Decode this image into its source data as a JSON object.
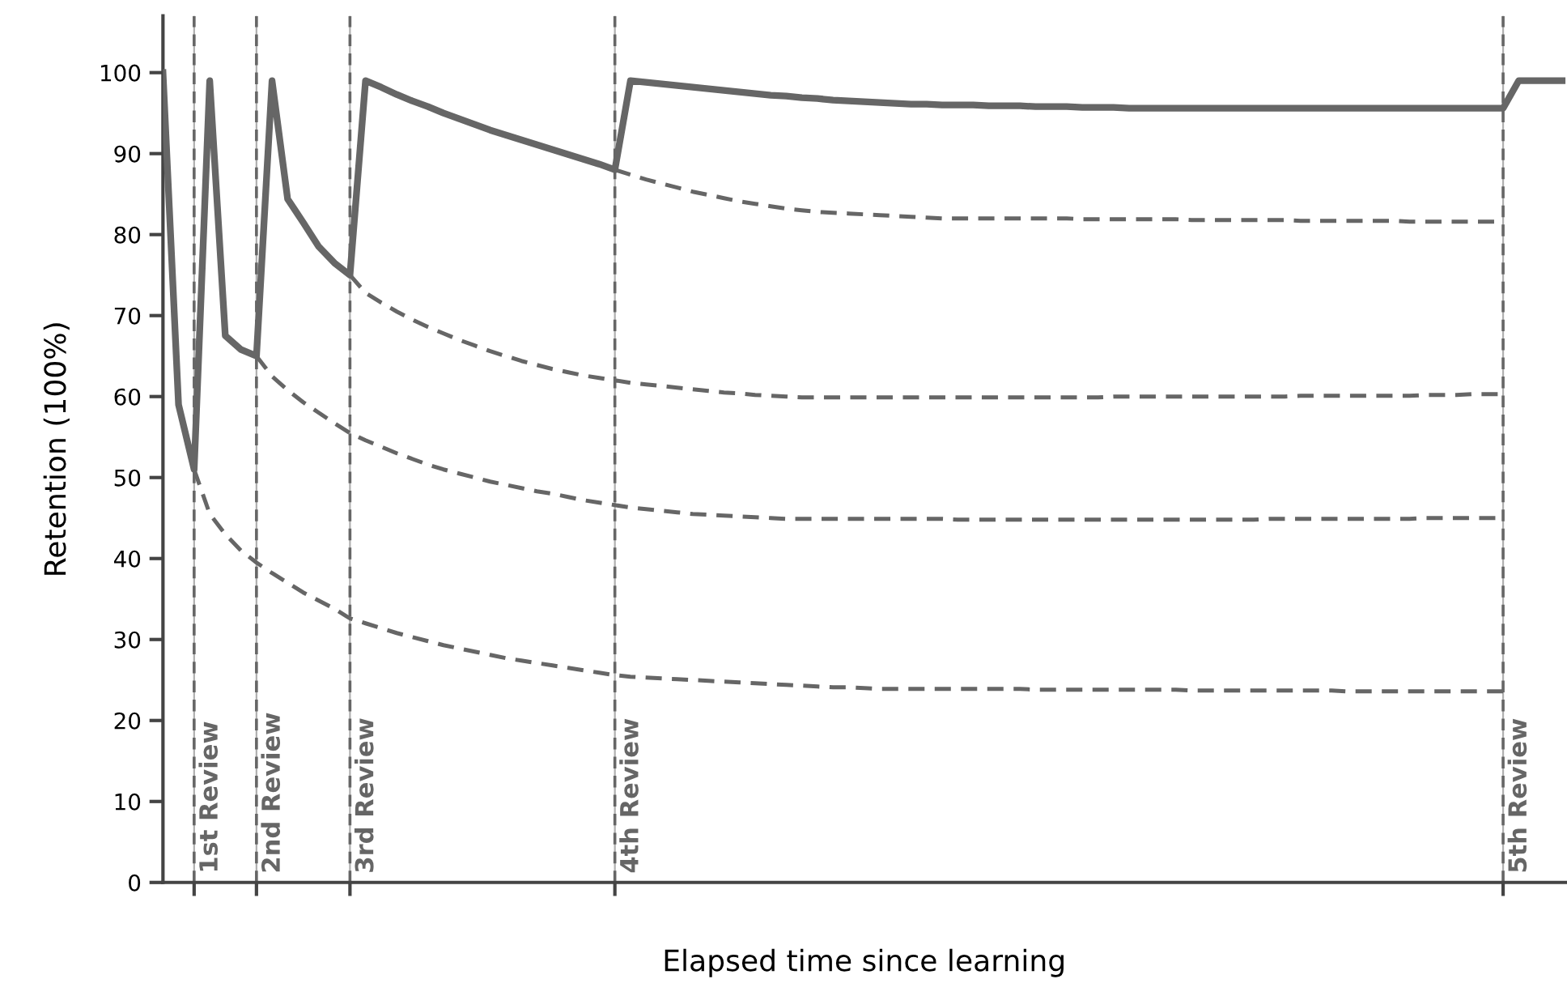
{
  "chart_data": {
    "type": "line",
    "xlabel": "Elapsed time since learning",
    "ylabel": "Retention (100%)",
    "categories": [
      null,
      null,
      null,
      null,
      null,
      null,
      null,
      null,
      null,
      null,
      null,
      null,
      null,
      null,
      null,
      null,
      null,
      null,
      null,
      null,
      null,
      null,
      null,
      null,
      null,
      null,
      null,
      null,
      null,
      null,
      null,
      null,
      null,
      null,
      null,
      null,
      null,
      null,
      null,
      null,
      null,
      null,
      null,
      null,
      null,
      null,
      null,
      null,
      null,
      null,
      null,
      null,
      null,
      null,
      null,
      null,
      null,
      null,
      null,
      null,
      null,
      null,
      null,
      null,
      null,
      null,
      null,
      null,
      null,
      null,
      null,
      null,
      null,
      null,
      null,
      null,
      null,
      null,
      null,
      null,
      null,
      null,
      null,
      null,
      null,
      null,
      null,
      null,
      null,
      null,
      null
    ],
    "ylim": [
      0,
      107
    ],
    "yticks": [
      0,
      10,
      20,
      30,
      40,
      50,
      60,
      70,
      80,
      90,
      100
    ],
    "tick_labels": "y",
    "marker": "none",
    "series": [
      {
        "color": "#666666",
        "line_style": "solid",
        "values": [
          100,
          59,
          51,
          99,
          67.5,
          65.8,
          65,
          99,
          84.4,
          81.5,
          78.5,
          76.5,
          75,
          99,
          98.2,
          97.3,
          96.5,
          95.8,
          95,
          94.3,
          93.6,
          92.9,
          92.3,
          91.7,
          91.1,
          90.5,
          89.9,
          89.3,
          88.7,
          88,
          99,
          98.8,
          98.6,
          98.4,
          98.2,
          98,
          97.8,
          97.6,
          97.4,
          97.2,
          97.1,
          96.9,
          96.8,
          96.6,
          96.5,
          96.4,
          96.3,
          96.2,
          96.1,
          96.1,
          96,
          96,
          96,
          95.9,
          95.9,
          95.9,
          95.8,
          95.8,
          95.8,
          95.7,
          95.7,
          95.7,
          95.6,
          95.6,
          95.6,
          95.6,
          95.6,
          95.6,
          95.6,
          95.6,
          95.6,
          95.6,
          95.6,
          95.6,
          95.6,
          95.6,
          95.6,
          95.6,
          95.6,
          95.6,
          95.6,
          95.6,
          95.6,
          95.6,
          95.6,
          95.6,
          95.6,
          99,
          99,
          99,
          99
        ]
      },
      {
        "color": "#666666",
        "line_style": "dashed",
        "values": [
          null,
          null,
          51,
          45.5,
          43,
          41,
          39.5,
          38.2,
          37,
          35.8,
          34.8,
          33.8,
          32.6,
          32,
          31.4,
          30.8,
          30.3,
          29.8,
          29.3,
          28.9,
          28.5,
          28.1,
          27.7,
          27.4,
          27.1,
          26.8,
          26.5,
          26.2,
          25.9,
          25.6,
          25.4,
          25.3,
          25.2,
          25.1,
          25,
          24.9,
          24.8,
          24.7,
          24.6,
          24.5,
          24.4,
          24.3,
          24.2,
          24.1,
          24.1,
          24,
          23.9,
          23.9,
          23.9,
          23.9,
          23.9,
          23.9,
          23.9,
          23.9,
          23.9,
          23.9,
          23.8,
          23.8,
          23.8,
          23.8,
          23.8,
          23.8,
          23.8,
          23.8,
          23.8,
          23.8,
          23.7,
          23.7,
          23.7,
          23.7,
          23.7,
          23.7,
          23.7,
          23.7,
          23.7,
          23.7,
          23.6,
          23.6,
          23.6,
          23.6,
          23.6,
          23.6,
          23.6,
          23.6,
          23.6,
          23.6,
          23.6,
          null,
          null,
          null,
          null
        ]
      },
      {
        "color": "#666666",
        "line_style": "dashed",
        "values": [
          null,
          null,
          null,
          null,
          null,
          null,
          65,
          62.5,
          60.8,
          59.3,
          58,
          56.7,
          55.5,
          54.6,
          53.8,
          53,
          52.3,
          51.6,
          51,
          50.5,
          50,
          49.5,
          49.1,
          48.7,
          48.3,
          48,
          47.6,
          47.2,
          46.9,
          46.6,
          46.3,
          46.1,
          45.9,
          45.7,
          45.5,
          45.4,
          45.3,
          45.2,
          45.1,
          45,
          44.9,
          44.9,
          44.9,
          44.9,
          44.9,
          44.9,
          44.9,
          44.9,
          44.9,
          44.9,
          44.9,
          44.8,
          44.8,
          44.8,
          44.8,
          44.8,
          44.8,
          44.8,
          44.8,
          44.8,
          44.8,
          44.8,
          44.8,
          44.8,
          44.8,
          44.8,
          44.8,
          44.8,
          44.8,
          44.8,
          44.8,
          44.9,
          44.9,
          44.9,
          44.9,
          44.9,
          44.9,
          44.9,
          44.9,
          44.9,
          44.9,
          45,
          45,
          45,
          45,
          45,
          45,
          null,
          null,
          null,
          null
        ]
      },
      {
        "color": "#666666",
        "line_style": "dashed",
        "values": [
          null,
          null,
          null,
          null,
          null,
          null,
          null,
          null,
          null,
          null,
          null,
          null,
          75,
          72.8,
          71.6,
          70.5,
          69.5,
          68.6,
          67.8,
          67,
          66.3,
          65.6,
          65,
          64.4,
          63.9,
          63.4,
          63,
          62.6,
          62.3,
          62,
          61.7,
          61.5,
          61.3,
          61.1,
          60.9,
          60.7,
          60.5,
          60.4,
          60.2,
          60.1,
          60,
          59.9,
          59.9,
          59.9,
          59.9,
          59.9,
          59.9,
          59.9,
          59.9,
          59.9,
          59.9,
          59.9,
          59.9,
          59.9,
          59.9,
          59.9,
          59.9,
          59.9,
          59.9,
          59.9,
          59.9,
          60,
          60,
          60,
          60,
          60,
          60,
          60,
          60,
          60,
          60,
          60,
          60,
          60.1,
          60.1,
          60.1,
          60.1,
          60.1,
          60.1,
          60.1,
          60.1,
          60.2,
          60.2,
          60.2,
          60.3,
          60.3,
          60.3,
          null,
          null,
          null,
          null
        ]
      },
      {
        "color": "#666666",
        "line_style": "dashed",
        "values": [
          null,
          null,
          null,
          null,
          null,
          null,
          null,
          null,
          null,
          null,
          null,
          null,
          null,
          null,
          null,
          null,
          null,
          null,
          null,
          null,
          null,
          null,
          null,
          null,
          null,
          null,
          null,
          null,
          null,
          88,
          87.4,
          86.8,
          86.3,
          85.8,
          85.3,
          84.9,
          84.5,
          84.1,
          83.8,
          83.5,
          83.2,
          83,
          82.8,
          82.7,
          82.6,
          82.5,
          82.4,
          82.3,
          82.2,
          82.1,
          82,
          82,
          82,
          82,
          82,
          82,
          82,
          82,
          82,
          81.9,
          81.9,
          81.9,
          81.9,
          81.9,
          81.9,
          81.9,
          81.8,
          81.8,
          81.8,
          81.8,
          81.8,
          81.8,
          81.8,
          81.7,
          81.7,
          81.7,
          81.7,
          81.7,
          81.7,
          81.7,
          81.6,
          81.6,
          81.6,
          81.6,
          81.6,
          81.6,
          81.6,
          null,
          null,
          null,
          null
        ]
      }
    ],
    "grid": "x",
    "annotations": [
      "1st Review",
      "2nd Review",
      "3rd Review",
      "4th Review",
      "5th Review"
    ]
  }
}
